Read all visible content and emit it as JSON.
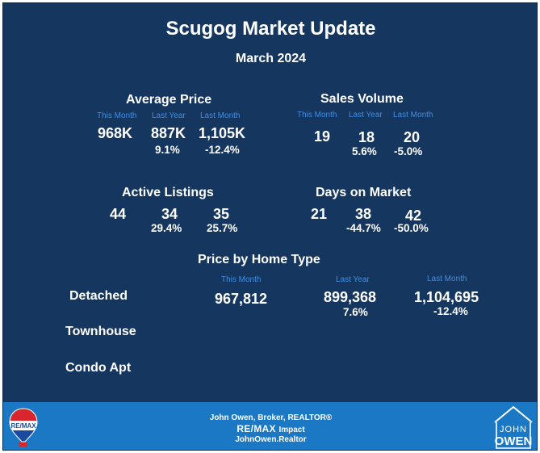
{
  "header": {
    "title": "Scugog Market Update",
    "period": "March 2024"
  },
  "labels": {
    "this_month": "This Month",
    "last_year": "Last Year",
    "last_month": "Last Month"
  },
  "average_price": {
    "title": "Average Price",
    "this_month": "968K",
    "last_year": "887K",
    "last_month": "1,105K",
    "last_year_change": "9.1%",
    "last_month_change": "-12.4%"
  },
  "sales_volume": {
    "title": "Sales Volume",
    "this_month": "19",
    "last_year": "18",
    "last_month": "20",
    "last_year_change": "5.6%",
    "last_month_change": "-5.0%"
  },
  "active_listings": {
    "title": "Active Listings",
    "this_month": "44",
    "last_year": "34",
    "last_month": "35",
    "last_year_change": "29.4%",
    "last_month_change": "25.7%"
  },
  "days_on_market": {
    "title": "Days on Market",
    "this_month": "21",
    "last_year": "38",
    "last_month": "42",
    "last_year_change": "-44.7%",
    "last_month_change": "-50.0%"
  },
  "home_type": {
    "title": "Price by Home Type",
    "rows": [
      {
        "label": "Detached",
        "this_month": "967,812",
        "last_year": "899,368",
        "last_month": "1,104,695",
        "last_year_change": "7.6%",
        "last_month_change": "-12.4%"
      },
      {
        "label": "Townhouse"
      },
      {
        "label": "Condo Apt"
      }
    ]
  },
  "footer": {
    "agent": "John Owen, Broker, REALTOR®",
    "brand": "RE/MAX",
    "brand_suffix": "Impact",
    "website": "JohnOwen.Realtor",
    "remax_badge": "RE/MAX",
    "logo_line1": "JOHN",
    "logo_line2": "OWEN"
  },
  "colors": {
    "background": "#15365f",
    "accent": "#3f8ee3",
    "footer": "#1a78c5",
    "text": "#ffffff"
  },
  "icons": {
    "balloon": "remax-balloon-icon",
    "house": "house-outline-icon"
  }
}
